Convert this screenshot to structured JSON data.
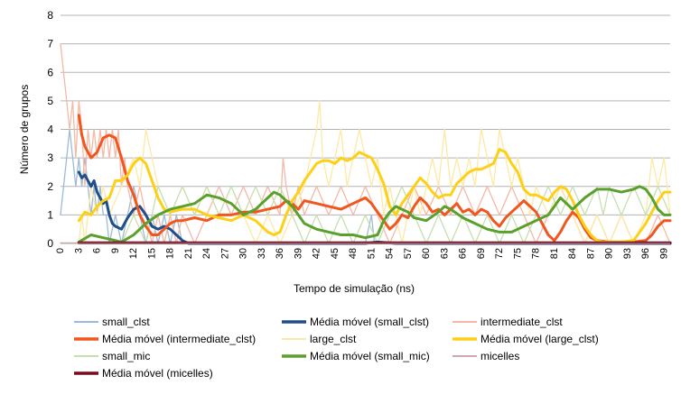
{
  "chart_data": {
    "type": "line",
    "title": "",
    "xlabel": "Tempo de simulação (ns)",
    "ylabel": "Número de grupos",
    "xlim": [
      0,
      100
    ],
    "ylim": [
      0,
      8
    ],
    "yticks": [
      0,
      1,
      2,
      3,
      4,
      5,
      6,
      7,
      8
    ],
    "xticks": [
      0,
      3,
      6,
      9,
      12,
      15,
      18,
      21,
      24,
      27,
      30,
      33,
      36,
      39,
      42,
      45,
      48,
      51,
      54,
      57,
      60,
      63,
      66,
      69,
      72,
      75,
      78,
      81,
      84,
      87,
      90,
      93,
      96,
      99
    ],
    "grid": true,
    "legend": "bottom",
    "series": [
      {
        "name": "small_clst",
        "kind": "raw",
        "color": "#9dbbd8",
        "width": 1.3,
        "x": [
          0,
          1,
          1.5,
          2,
          2.5,
          3,
          3.5,
          4,
          4.5,
          5,
          5.5,
          6,
          6.5,
          7,
          7.5,
          8,
          9,
          10,
          11,
          12,
          13,
          14,
          15,
          16,
          17,
          18,
          19,
          20,
          21,
          22,
          30,
          40,
          50,
          51,
          51.5,
          52,
          53,
          60,
          100
        ],
        "values": [
          1,
          3,
          4,
          3,
          2,
          3,
          2,
          3,
          2,
          1,
          2,
          1,
          2,
          1,
          1,
          0,
          1,
          0,
          1,
          2,
          1,
          0,
          1,
          0,
          1,
          0,
          1,
          0,
          0,
          0,
          0,
          0,
          0,
          1,
          0,
          0,
          0,
          0,
          0
        ]
      },
      {
        "name": "Média móvel (small_clst)",
        "kind": "avg",
        "color": "#1f4e8c",
        "width": 3,
        "x": [
          3,
          3.5,
          4,
          4.5,
          5,
          5.5,
          6,
          6.5,
          7,
          7.5,
          8,
          8.5,
          9,
          10,
          11,
          12,
          13,
          14,
          15,
          16,
          17,
          18,
          19,
          20,
          21,
          22,
          30,
          40,
          50,
          52,
          55,
          60,
          100
        ],
        "values": [
          2.5,
          2.3,
          2.4,
          2.2,
          2.0,
          2.2,
          1.8,
          1.6,
          1.4,
          1.5,
          1.0,
          0.7,
          0.6,
          0.5,
          0.9,
          1.2,
          1.3,
          1.0,
          0.6,
          0.5,
          0.6,
          0.5,
          0.3,
          0.1,
          0,
          0,
          0,
          0,
          0,
          0.05,
          0,
          0,
          0
        ]
      },
      {
        "name": "intermediate_clst",
        "kind": "raw",
        "color": "#f6b8a6",
        "width": 1.3,
        "x": [
          0,
          0.5,
          1,
          1.5,
          2,
          2.5,
          3,
          3.5,
          4,
          4.5,
          5,
          5.5,
          6,
          6.5,
          7,
          7.5,
          8,
          8.5,
          9,
          9.5,
          10,
          10.5,
          11,
          12,
          13,
          14,
          15,
          16,
          17,
          18,
          19,
          20,
          22,
          24,
          26,
          28,
          30,
          32,
          34,
          36,
          36.5,
          37,
          38,
          39,
          40,
          42,
          44,
          46,
          48,
          50,
          52,
          54,
          56,
          58,
          60,
          62,
          64,
          66,
          68,
          70,
          72,
          74,
          76,
          78,
          80,
          82,
          84,
          86,
          88,
          90,
          92,
          94,
          96,
          98,
          100
        ],
        "values": [
          7,
          6,
          5,
          4,
          5,
          3,
          5,
          4,
          2,
          4,
          3,
          4,
          3,
          4,
          3,
          4,
          3,
          4,
          3,
          4,
          2,
          3,
          2,
          1,
          2,
          1,
          0,
          1,
          0,
          1,
          0,
          1,
          0,
          1,
          2,
          1,
          2,
          1,
          2,
          1,
          3,
          2,
          1,
          2,
          1,
          2,
          1,
          2,
          1,
          2,
          1,
          0,
          1,
          2,
          1,
          2,
          1,
          2,
          1,
          2,
          1,
          2,
          1,
          0,
          1,
          2,
          1,
          0,
          1,
          0,
          1,
          0,
          0,
          1,
          0
        ]
      },
      {
        "name": "Média móvel (intermediate_clst)",
        "kind": "avg",
        "color": "#f0561d",
        "width": 3,
        "x": [
          3,
          3.5,
          4,
          5,
          6,
          7,
          8,
          9,
          10,
          11,
          12,
          13,
          14,
          15,
          16,
          17,
          18,
          19,
          20,
          22,
          24,
          26,
          28,
          30,
          32,
          34,
          36,
          37,
          38,
          39,
          40,
          42,
          44,
          46,
          48,
          50,
          51,
          52,
          53,
          54,
          55,
          56,
          57,
          58,
          59,
          60,
          61,
          62,
          63,
          64,
          65,
          66,
          67,
          68,
          69,
          70,
          71,
          72,
          73,
          74,
          75,
          76,
          77,
          78,
          79,
          80,
          81,
          82,
          83,
          84,
          85,
          86,
          87,
          88,
          90,
          92,
          94,
          96,
          97,
          98,
          99,
          100
        ],
        "values": [
          4.5,
          3.8,
          3.4,
          3.0,
          3.2,
          3.7,
          3.8,
          3.7,
          3.0,
          2.2,
          1.7,
          1.0,
          0.6,
          0.3,
          0.3,
          0.5,
          0.7,
          0.8,
          0.8,
          0.9,
          0.8,
          1.0,
          1.0,
          1.1,
          1.1,
          1.2,
          1.3,
          1.5,
          1.4,
          1.2,
          1.5,
          1.4,
          1.3,
          1.2,
          1.4,
          1.6,
          1.4,
          1.1,
          0.8,
          0.5,
          0.7,
          1.0,
          0.9,
          1.3,
          1.6,
          1.4,
          1.1,
          1.2,
          1.0,
          1.2,
          1.4,
          1.1,
          1.2,
          1.0,
          1.2,
          1.1,
          0.8,
          0.6,
          0.9,
          1.1,
          1.3,
          1.5,
          1.3,
          1.1,
          0.7,
          0.3,
          0.1,
          0.4,
          0.8,
          1.1,
          0.9,
          0.5,
          0.2,
          0.1,
          0.05,
          0.05,
          0.05,
          0.1,
          0.3,
          0.6,
          0.8,
          0.8
        ]
      },
      {
        "name": "large_clst",
        "kind": "raw",
        "color": "#fde9a6",
        "width": 1.3,
        "x": [
          0,
          3,
          3.5,
          4,
          5,
          6,
          7,
          8,
          10,
          12,
          13,
          14,
          15,
          16,
          18,
          20,
          22,
          24,
          26,
          28,
          30,
          32,
          34,
          36,
          38,
          40,
          41,
          42,
          42.5,
          43,
          44,
          45,
          46,
          47,
          48,
          49,
          50,
          51,
          52,
          53,
          54,
          55,
          56,
          57,
          58,
          59,
          60,
          61,
          62,
          63,
          64,
          65,
          66,
          67,
          68,
          69,
          70,
          71,
          72,
          73,
          74,
          75,
          76,
          77,
          78,
          80,
          82,
          84,
          86,
          88,
          90,
          92,
          94,
          96,
          97,
          98,
          99,
          100
        ],
        "values": [
          0,
          0,
          1,
          0,
          2,
          1,
          2,
          1,
          2,
          3,
          2,
          4,
          3,
          2,
          1,
          2,
          1,
          2,
          1,
          2,
          1,
          0,
          1,
          0,
          1,
          2,
          3,
          4,
          5,
          3,
          2,
          3,
          4,
          2,
          3,
          4,
          3,
          2,
          3,
          1,
          2,
          1,
          0,
          1,
          2,
          1,
          2,
          3,
          2,
          4,
          2,
          3,
          2,
          3,
          2,
          4,
          3,
          2,
          4,
          3,
          2,
          3,
          2,
          1,
          2,
          1,
          2,
          1,
          0,
          1,
          0,
          1,
          0,
          1,
          3,
          2,
          3,
          1
        ]
      },
      {
        "name": "Média móvel (large_clst)",
        "kind": "avg",
        "color": "#fdd017",
        "width": 3,
        "x": [
          3,
          4,
          5,
          6,
          7,
          8,
          9,
          10,
          11,
          12,
          13,
          14,
          15,
          16,
          17,
          18,
          20,
          22,
          24,
          26,
          28,
          30,
          32,
          34,
          35,
          36,
          37,
          38,
          39,
          40,
          41,
          42,
          43,
          44,
          45,
          46,
          47,
          48,
          49,
          50,
          51,
          52,
          53,
          54,
          55,
          56,
          57,
          58,
          59,
          60,
          61,
          62,
          63,
          64,
          65,
          66,
          67,
          68,
          69,
          70,
          71,
          72,
          73,
          74,
          75,
          76,
          77,
          78,
          79,
          80,
          81,
          82,
          83,
          84,
          85,
          86,
          87,
          88,
          89,
          90,
          92,
          94,
          95,
          96,
          97,
          98,
          99,
          100
        ],
        "values": [
          0.8,
          1.1,
          1.0,
          1.3,
          1.5,
          1.6,
          2.2,
          2.2,
          2.4,
          2.8,
          3.0,
          2.8,
          2.2,
          1.6,
          1.2,
          1.1,
          1.2,
          1.2,
          1.0,
          0.9,
          0.8,
          1.0,
          0.8,
          0.4,
          0.3,
          0.4,
          1.0,
          1.5,
          1.8,
          2.2,
          2.5,
          2.8,
          2.9,
          2.9,
          2.8,
          3.0,
          2.9,
          3.0,
          3.2,
          3.1,
          3.0,
          2.6,
          2.1,
          1.3,
          1.0,
          1.4,
          1.7,
          2.0,
          2.3,
          2.1,
          1.8,
          1.6,
          1.7,
          1.7,
          2.1,
          2.3,
          2.5,
          2.6,
          2.6,
          2.7,
          2.8,
          3.3,
          3.2,
          2.8,
          2.5,
          1.9,
          1.7,
          1.7,
          1.6,
          1.5,
          1.8,
          2.0,
          1.9,
          1.5,
          1.0,
          0.6,
          0.3,
          0.1,
          0.05,
          0.05,
          0.05,
          0.1,
          0.4,
          0.7,
          1.1,
          1.5,
          1.8,
          1.8
        ]
      },
      {
        "name": "small_mic",
        "kind": "raw",
        "color": "#c6dfb0",
        "width": 1.3,
        "x": [
          0,
          10,
          12,
          14,
          15,
          16,
          18,
          20,
          22,
          24,
          26,
          28,
          30,
          32,
          34,
          36,
          38,
          40,
          42,
          44,
          46,
          48,
          50,
          52,
          54,
          56,
          58,
          60,
          62,
          64,
          66,
          68,
          70,
          72,
          74,
          76,
          78,
          80,
          82,
          84,
          86,
          88,
          89,
          90,
          92,
          94,
          96,
          98,
          100
        ],
        "values": [
          0,
          0,
          1,
          0,
          1,
          2,
          1,
          2,
          1,
          2,
          1,
          2,
          1,
          2,
          1,
          2,
          1,
          0,
          1,
          0,
          1,
          0,
          1,
          0,
          1,
          2,
          1,
          0,
          1,
          0,
          1,
          0,
          1,
          0,
          1,
          0,
          1,
          2,
          1,
          2,
          1,
          2,
          1,
          2,
          1,
          2,
          1,
          2,
          1
        ]
      },
      {
        "name": "Média móvel (small_mic)",
        "kind": "avg",
        "color": "#5aa02c",
        "width": 3,
        "x": [
          3,
          5,
          7,
          9,
          10,
          12,
          14,
          16,
          18,
          20,
          22,
          24,
          26,
          28,
          30,
          32,
          33,
          34,
          35,
          36,
          37,
          38,
          39,
          40,
          42,
          44,
          46,
          48,
          50,
          52,
          53,
          54,
          55,
          56,
          57,
          58,
          60,
          62,
          63,
          64,
          66,
          68,
          70,
          72,
          74,
          76,
          78,
          80,
          81,
          82,
          84,
          86,
          88,
          90,
          92,
          94,
          95,
          96,
          97,
          98,
          99,
          100
        ],
        "values": [
          0.05,
          0.3,
          0.2,
          0.1,
          0.05,
          0.3,
          0.7,
          1.0,
          1.2,
          1.3,
          1.4,
          1.7,
          1.6,
          1.4,
          1.0,
          1.2,
          1.4,
          1.6,
          1.8,
          1.7,
          1.5,
          1.3,
          1.0,
          0.7,
          0.5,
          0.4,
          0.3,
          0.3,
          0.2,
          0.3,
          0.8,
          1.1,
          1.3,
          1.2,
          1.1,
          0.9,
          0.8,
          1.1,
          1.3,
          1.2,
          0.9,
          0.7,
          0.5,
          0.4,
          0.4,
          0.6,
          0.8,
          1.0,
          1.3,
          1.6,
          1.2,
          1.6,
          1.9,
          1.9,
          1.8,
          1.9,
          2.0,
          1.9,
          1.6,
          1.2,
          1.0,
          1.0
        ]
      },
      {
        "name": "micelles",
        "kind": "raw",
        "color": "#d4a5b3",
        "width": 1.3,
        "x": [
          0,
          100
        ],
        "values": [
          0.02,
          0.02
        ]
      },
      {
        "name": "Média móvel (micelles)",
        "kind": "avg",
        "color": "#7a0b1e",
        "width": 3.2,
        "x": [
          3,
          100
        ],
        "values": [
          0.02,
          0.02
        ]
      }
    ]
  }
}
